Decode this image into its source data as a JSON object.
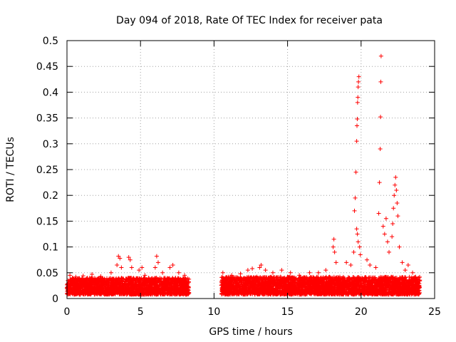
{
  "chart_data": {
    "type": "scatter",
    "title": "Day 094 of 2018, Rate Of TEC Index for receiver pata",
    "xlabel": "GPS time / hours",
    "ylabel": "ROTI / TECUs",
    "xlim": [
      0,
      25
    ],
    "ylim": [
      0,
      0.5
    ],
    "x_ticks": [
      0,
      5,
      10,
      15,
      20,
      25
    ],
    "x_tick_labels": [
      "0",
      "5",
      "10",
      "15",
      "20",
      "25"
    ],
    "y_ticks": [
      0,
      0.05,
      0.1,
      0.15,
      0.2,
      0.25,
      0.3,
      0.35,
      0.4,
      0.45,
      0.5
    ],
    "y_tick_labels": [
      "0",
      "0.05",
      "0.1",
      "0.15",
      "0.2",
      "0.25",
      "0.3",
      "0.35",
      "0.4",
      "0.45",
      "0.5"
    ],
    "grid": true,
    "marker": "+",
    "color": "#ff0000",
    "data_gap_hours": [
      8.3,
      10.5
    ],
    "background_band": [
      {
        "x_start": 0.0,
        "x_end": 8.3,
        "y_low": 0.008,
        "y_high": 0.04
      },
      {
        "x_start": 10.5,
        "x_end": 24.0,
        "y_low": 0.008,
        "y_high": 0.042
      }
    ],
    "series": [
      {
        "name": "ROTI",
        "points": [
          [
            0.2,
            0.045
          ],
          [
            0.6,
            0.042
          ],
          [
            1.1,
            0.044
          ],
          [
            1.7,
            0.047
          ],
          [
            2.3,
            0.043
          ],
          [
            3.0,
            0.05
          ],
          [
            3.4,
            0.065
          ],
          [
            3.5,
            0.082
          ],
          [
            3.6,
            0.078
          ],
          [
            3.7,
            0.06
          ],
          [
            4.2,
            0.08
          ],
          [
            4.3,
            0.075
          ],
          [
            4.4,
            0.06
          ],
          [
            4.9,
            0.055
          ],
          [
            5.1,
            0.06
          ],
          [
            5.3,
            0.045
          ],
          [
            6.0,
            0.06
          ],
          [
            6.1,
            0.082
          ],
          [
            6.2,
            0.07
          ],
          [
            6.5,
            0.05
          ],
          [
            7.0,
            0.06
          ],
          [
            7.2,
            0.065
          ],
          [
            7.6,
            0.05
          ],
          [
            8.0,
            0.045
          ],
          [
            10.6,
            0.05
          ],
          [
            11.2,
            0.045
          ],
          [
            11.8,
            0.048
          ],
          [
            12.3,
            0.055
          ],
          [
            12.6,
            0.058
          ],
          [
            13.1,
            0.06
          ],
          [
            13.2,
            0.065
          ],
          [
            13.5,
            0.055
          ],
          [
            14.0,
            0.05
          ],
          [
            14.6,
            0.055
          ],
          [
            15.2,
            0.05
          ],
          [
            15.8,
            0.045
          ],
          [
            16.5,
            0.05
          ],
          [
            17.1,
            0.05
          ],
          [
            17.6,
            0.055
          ],
          [
            18.1,
            0.1
          ],
          [
            18.15,
            0.115
          ],
          [
            18.2,
            0.09
          ],
          [
            18.3,
            0.07
          ],
          [
            19.0,
            0.07
          ],
          [
            19.3,
            0.065
          ],
          [
            19.5,
            0.09
          ],
          [
            19.55,
            0.17
          ],
          [
            19.6,
            0.195
          ],
          [
            19.65,
            0.245
          ],
          [
            19.7,
            0.305
          ],
          [
            19.72,
            0.335
          ],
          [
            19.74,
            0.348
          ],
          [
            19.76,
            0.38
          ],
          [
            19.78,
            0.39
          ],
          [
            19.8,
            0.41
          ],
          [
            19.82,
            0.42
          ],
          [
            19.85,
            0.43
          ],
          [
            19.7,
            0.135
          ],
          [
            19.75,
            0.125
          ],
          [
            19.8,
            0.11
          ],
          [
            19.9,
            0.1
          ],
          [
            19.95,
            0.085
          ],
          [
            20.4,
            0.075
          ],
          [
            20.6,
            0.065
          ],
          [
            21.0,
            0.06
          ],
          [
            21.2,
            0.165
          ],
          [
            21.25,
            0.225
          ],
          [
            21.3,
            0.29
          ],
          [
            21.32,
            0.352
          ],
          [
            21.34,
            0.42
          ],
          [
            21.36,
            0.47
          ],
          [
            21.5,
            0.14
          ],
          [
            21.6,
            0.125
          ],
          [
            21.7,
            0.155
          ],
          [
            21.8,
            0.11
          ],
          [
            21.9,
            0.09
          ],
          [
            22.1,
            0.12
          ],
          [
            22.15,
            0.145
          ],
          [
            22.2,
            0.175
          ],
          [
            22.25,
            0.2
          ],
          [
            22.3,
            0.22
          ],
          [
            22.35,
            0.235
          ],
          [
            22.4,
            0.21
          ],
          [
            22.45,
            0.185
          ],
          [
            22.5,
            0.16
          ],
          [
            22.6,
            0.1
          ],
          [
            22.8,
            0.07
          ],
          [
            23.0,
            0.055
          ],
          [
            23.2,
            0.065
          ],
          [
            23.5,
            0.05
          ],
          [
            23.9,
            0.04
          ]
        ]
      }
    ]
  }
}
